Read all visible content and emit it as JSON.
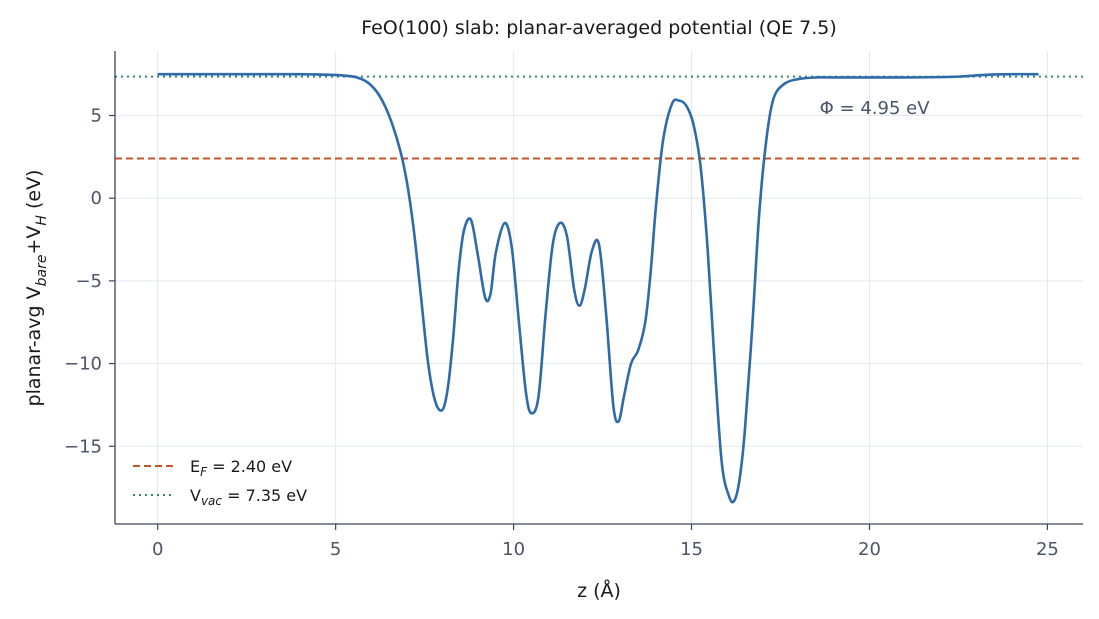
{
  "chart_data": {
    "type": "line",
    "title": "FeO(100) slab: planar-averaged potential  (QE 7.5)",
    "xlabel": "z  (Å)",
    "ylabel": {
      "base": "planar-avg  V",
      "sub1": "bare",
      "mid": "+V",
      "sub2": "H",
      "end": "  (eV)"
    },
    "xlim": [
      -1.2,
      26.0
    ],
    "ylim": [
      -19.7,
      8.9
    ],
    "xticks": [
      0,
      5,
      10,
      15,
      20,
      25
    ],
    "yticks": [
      5,
      0,
      -5,
      -10,
      -15
    ],
    "xtick_labels": [
      "0",
      "5",
      "10",
      "15",
      "20",
      "25"
    ],
    "ytick_labels": [
      "5",
      "0",
      "−5",
      "−10",
      "−15"
    ],
    "grid": true,
    "series": [
      {
        "color": "#2f6ba8",
        "x": [
          0.0,
          1.0,
          2.0,
          3.0,
          4.0,
          4.5,
          5.0,
          5.3,
          5.6,
          5.9,
          6.2,
          6.5,
          6.8,
          7.0,
          7.2,
          7.4,
          7.6,
          7.8,
          8.0,
          8.15,
          8.3,
          8.45,
          8.6,
          8.8,
          9.0,
          9.2,
          9.35,
          9.5,
          9.75,
          9.95,
          10.15,
          10.35,
          10.5,
          10.7,
          10.9,
          11.1,
          11.3,
          11.5,
          11.7,
          11.85,
          12.0,
          12.2,
          12.4,
          12.6,
          12.8,
          12.95,
          13.1,
          13.3,
          13.5,
          13.7,
          13.85,
          14.0,
          14.2,
          14.45,
          14.65,
          14.85,
          15.05,
          15.25,
          15.45,
          15.65,
          15.85,
          16.05,
          16.2,
          16.35,
          16.5,
          16.7,
          16.9,
          17.1,
          17.3,
          17.6,
          18.0,
          18.5,
          19.0,
          20.0,
          21.0,
          22.0,
          22.5,
          23.0,
          23.5,
          24.0,
          24.5,
          24.75
        ],
        "y": [
          7.5,
          7.5,
          7.5,
          7.5,
          7.5,
          7.48,
          7.45,
          7.4,
          7.3,
          7.0,
          6.3,
          5.0,
          3.0,
          1.0,
          -2.0,
          -6.0,
          -10.0,
          -12.3,
          -12.8,
          -11.5,
          -8.5,
          -4.5,
          -2.0,
          -1.3,
          -3.5,
          -6.0,
          -5.8,
          -3.3,
          -1.5,
          -3.0,
          -7.5,
          -11.8,
          -13.0,
          -12.0,
          -7.0,
          -2.8,
          -1.5,
          -2.3,
          -5.5,
          -6.5,
          -5.5,
          -3.2,
          -2.8,
          -7.0,
          -12.5,
          -13.5,
          -12.0,
          -10.0,
          -9.2,
          -7.5,
          -4.5,
          -0.5,
          3.5,
          5.7,
          5.9,
          5.6,
          4.5,
          2.0,
          -3.0,
          -10.0,
          -16.0,
          -18.0,
          -18.3,
          -17.0,
          -14.0,
          -8.0,
          -1.0,
          3.5,
          6.0,
          6.9,
          7.2,
          7.3,
          7.3,
          7.3,
          7.3,
          7.32,
          7.35,
          7.42,
          7.48,
          7.5,
          7.5,
          7.5
        ]
      }
    ],
    "hlines": [
      {
        "name": "fermi",
        "y": 2.4,
        "color": "#c0552a",
        "style": "dashed",
        "label_base": "E",
        "label_sub": "F",
        "label_rest": " = 2.40 eV"
      },
      {
        "name": "vacuum",
        "y": 7.35,
        "color": "#2e8b6b",
        "style": "dotted",
        "label_base": "V",
        "label_sub": "vac",
        "label_rest": " = 7.35 eV"
      }
    ],
    "annotation": {
      "text": "Φ = 4.95 eV",
      "x": 18.6,
      "y": 5.2
    },
    "legend_position": "lower-left"
  }
}
